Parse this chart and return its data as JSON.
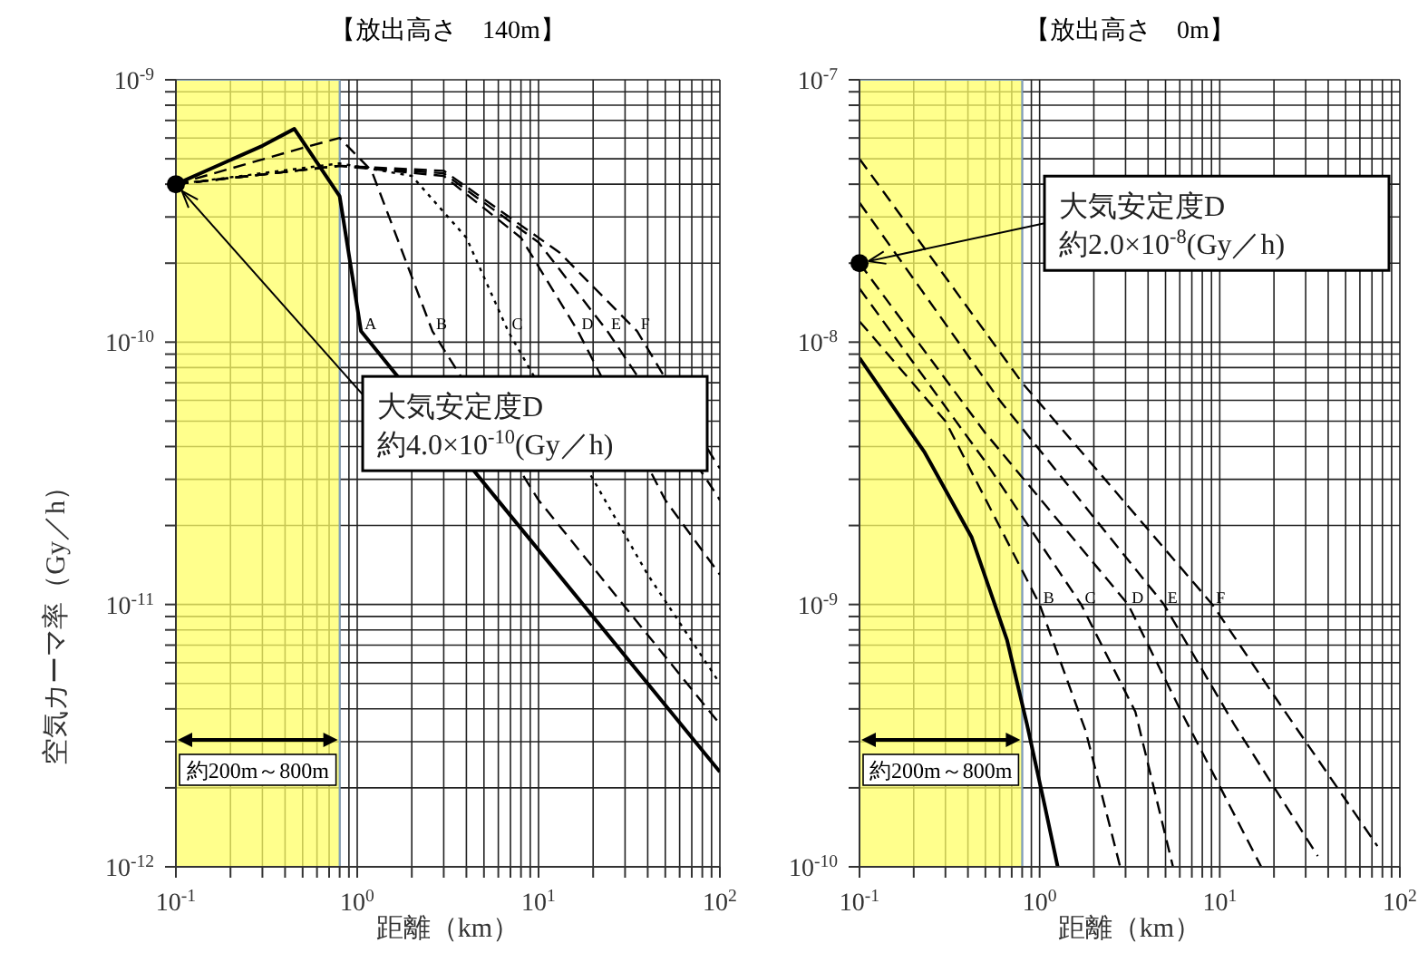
{
  "chart_data": [
    {
      "type": "line",
      "title": "【放出高さ　140m】",
      "xlabel": "距離（km）",
      "ylabel": "空気カーマ率（Gy／h）",
      "log": "xy",
      "grid": true,
      "legend": false,
      "marker": "none",
      "xlim": [
        0.1,
        100
      ],
      "ylim": [
        1e-12,
        1e-09
      ],
      "xticks": [
        {
          "value": 0.1,
          "label": "10$^{-1}$"
        },
        {
          "value": 0.2,
          "label": null
        },
        {
          "value": 0.3,
          "label": null
        },
        {
          "value": 0.4,
          "label": null
        },
        {
          "value": 0.5,
          "label": null
        },
        {
          "value": 0.6,
          "label": null
        },
        {
          "value": 0.7,
          "label": null
        },
        {
          "value": 0.8,
          "label": null
        },
        {
          "value": 0.9,
          "label": null
        },
        {
          "value": 1,
          "label": "10$^{0}$"
        },
        {
          "value": 2,
          "label": null
        },
        {
          "value": 3,
          "label": null
        },
        {
          "value": 4,
          "label": null
        },
        {
          "value": 5,
          "label": null
        },
        {
          "value": 6,
          "label": null
        },
        {
          "value": 7,
          "label": null
        },
        {
          "value": 8,
          "label": null
        },
        {
          "value": 9,
          "label": null
        },
        {
          "value": 10,
          "label": "10$^{1}$"
        },
        {
          "value": 20,
          "label": null
        },
        {
          "value": 30,
          "label": null
        },
        {
          "value": 40,
          "label": null
        },
        {
          "value": 50,
          "label": null
        },
        {
          "value": 60,
          "label": null
        },
        {
          "value": 70,
          "label": null
        },
        {
          "value": 80,
          "label": null
        },
        {
          "value": 90,
          "label": null
        },
        {
          "value": 100,
          "label": "10$^{2}$"
        }
      ],
      "yticks": [
        {
          "value": 1e-12,
          "label": "10$^{-12}$"
        },
        {
          "value": 2e-12,
          "label": null
        },
        {
          "value": 3e-12,
          "label": null
        },
        {
          "value": 4e-12,
          "label": null
        },
        {
          "value": 5e-12,
          "label": null
        },
        {
          "value": 6e-12,
          "label": null
        },
        {
          "value": 7e-12,
          "label": null
        },
        {
          "value": 8e-12,
          "label": null
        },
        {
          "value": 9e-12,
          "label": null
        },
        {
          "value": 1e-11,
          "label": "10$^{-11}$"
        },
        {
          "value": 2e-11,
          "label": null
        },
        {
          "value": 3e-11,
          "label": null
        },
        {
          "value": 4e-11,
          "label": null
        },
        {
          "value": 5e-11,
          "label": null
        },
        {
          "value": 6e-11,
          "label": null
        },
        {
          "value": 7e-11,
          "label": null
        },
        {
          "value": 8e-11,
          "label": null
        },
        {
          "value": 9e-11,
          "label": null
        },
        {
          "value": 1e-10,
          "label": "10$^{-10}$"
        },
        {
          "value": 2e-10,
          "label": null
        },
        {
          "value": 3e-10,
          "label": null
        },
        {
          "value": 4e-10,
          "label": null
        },
        {
          "value": 5e-10,
          "label": null
        },
        {
          "value": 6e-10,
          "label": null
        },
        {
          "value": 7e-10,
          "label": null
        },
        {
          "value": 8e-10,
          "label": null
        },
        {
          "value": 9e-10,
          "label": null
        },
        {
          "value": 1e-09,
          "label": "10$^{-9}$"
        }
      ],
      "series": [
        {
          "name": "A",
          "color": "#000000",
          "line_style": "solid",
          "x": [
            0.1,
            0.3,
            0.45,
            0.8,
            1.05,
            5,
            100
          ],
          "values": [
            4e-10,
            5.6e-10,
            6.5e-10,
            3.6e-10,
            1.1e-10,
            2.9e-11,
            2.3e-12
          ]
        },
        {
          "name": "B",
          "color": "#000000",
          "line_style": "dashed",
          "x": [
            0.1,
            0.5,
            0.8,
            1.2,
            2.6,
            10,
            100
          ],
          "values": [
            4e-10,
            5.5e-10,
            6e-10,
            4.5e-10,
            1.1e-10,
            2.5e-11,
            3.5e-12
          ]
        },
        {
          "name": "C",
          "color": "#000000",
          "line_style": "dotted",
          "x": [
            0.1,
            0.8,
            2,
            4,
            6.8,
            40,
            100
          ],
          "values": [
            4e-10,
            4.8e-10,
            4.3e-10,
            2.5e-10,
            1.1e-10,
            1.3e-11,
            5e-12
          ]
        },
        {
          "name": "D",
          "color": "#000000",
          "line_style": "dashed",
          "x": [
            0.1,
            0.8,
            3,
            8,
            16.5,
            50,
            100
          ],
          "values": [
            4e-10,
            4.7e-10,
            4.3e-10,
            2.5e-10,
            1.1e-10,
            2.5e-11,
            1.3e-11
          ]
        },
        {
          "name": "E",
          "color": "#000000",
          "line_style": "dashed",
          "x": [
            0.1,
            0.8,
            3,
            10,
            24,
            90,
            100
          ],
          "values": [
            4e-10,
            4.7e-10,
            4.4e-10,
            2.4e-10,
            1.1e-10,
            2.8e-11,
            2.5e-11
          ]
        },
        {
          "name": "F",
          "color": "#000000",
          "line_style": "dashed",
          "x": [
            0.1,
            0.8,
            3,
            13,
            35,
            90,
            100
          ],
          "values": [
            4e-10,
            4.7e-10,
            4.5e-10,
            2.2e-10,
            1.1e-10,
            3.7e-11,
            3.3e-11
          ]
        }
      ],
      "bands": [
        {
          "axis": "x",
          "from": 0.1,
          "to": 0.8,
          "label": "約200m～800m",
          "color": "#ffff66"
        }
      ],
      "annotations": [
        {
          "text": "大気安定度D\n約4.0×10$^{-10}$(Gy／h)",
          "x": 0.1,
          "y": 4e-10
        }
      ]
    },
    {
      "type": "line",
      "title": "【放出高さ　0m】",
      "xlabel": "距離（km）",
      "log": "xy",
      "grid": true,
      "legend": false,
      "marker": "none",
      "xlim": [
        0.1,
        100
      ],
      "ylim": [
        1e-10,
        1e-07
      ],
      "xticks": [
        {
          "value": 0.1,
          "label": "10$^{-1}$"
        },
        {
          "value": 0.2,
          "label": null
        },
        {
          "value": 0.3,
          "label": null
        },
        {
          "value": 0.4,
          "label": null
        },
        {
          "value": 0.5,
          "label": null
        },
        {
          "value": 0.6,
          "label": null
        },
        {
          "value": 0.7,
          "label": null
        },
        {
          "value": 0.8,
          "label": null
        },
        {
          "value": 0.9,
          "label": null
        },
        {
          "value": 1,
          "label": "10$^{0}$"
        },
        {
          "value": 2,
          "label": null
        },
        {
          "value": 3,
          "label": null
        },
        {
          "value": 4,
          "label": null
        },
        {
          "value": 5,
          "label": null
        },
        {
          "value": 6,
          "label": null
        },
        {
          "value": 7,
          "label": null
        },
        {
          "value": 8,
          "label": null
        },
        {
          "value": 9,
          "label": null
        },
        {
          "value": 10,
          "label": "10$^{1}$"
        },
        {
          "value": 20,
          "label": null
        },
        {
          "value": 30,
          "label": null
        },
        {
          "value": 40,
          "label": null
        },
        {
          "value": 50,
          "label": null
        },
        {
          "value": 60,
          "label": null
        },
        {
          "value": 70,
          "label": null
        },
        {
          "value": 80,
          "label": null
        },
        {
          "value": 90,
          "label": null
        },
        {
          "value": 100,
          "label": "10$^{2}$"
        }
      ],
      "yticks": [
        {
          "value": 1e-10,
          "label": "10$^{-10}$"
        },
        {
          "value": 2e-10,
          "label": null
        },
        {
          "value": 3e-10,
          "label": null
        },
        {
          "value": 4e-10,
          "label": null
        },
        {
          "value": 5e-10,
          "label": null
        },
        {
          "value": 6e-10,
          "label": null
        },
        {
          "value": 7e-10,
          "label": null
        },
        {
          "value": 8e-10,
          "label": null
        },
        {
          "value": 9e-10,
          "label": null
        },
        {
          "value": 1e-09,
          "label": "10$^{-9}$"
        },
        {
          "value": 2e-09,
          "label": null
        },
        {
          "value": 3e-09,
          "label": null
        },
        {
          "value": 4e-09,
          "label": null
        },
        {
          "value": 5e-09,
          "label": null
        },
        {
          "value": 6e-09,
          "label": null
        },
        {
          "value": 7e-09,
          "label": null
        },
        {
          "value": 8e-09,
          "label": null
        },
        {
          "value": 9e-09,
          "label": null
        },
        {
          "value": 1e-08,
          "label": "10$^{-8}$"
        },
        {
          "value": 2e-08,
          "label": null
        },
        {
          "value": 3e-08,
          "label": null
        },
        {
          "value": 4e-08,
          "label": null
        },
        {
          "value": 5e-08,
          "label": null
        },
        {
          "value": 6e-08,
          "label": null
        },
        {
          "value": 7e-08,
          "label": null
        },
        {
          "value": 8e-08,
          "label": null
        },
        {
          "value": 9e-08,
          "label": null
        },
        {
          "value": 1e-07,
          "label": "10$^{-7}$"
        }
      ],
      "series": [
        {
          "color": "#000000",
          "line_style": "solid",
          "x": [
            0.1,
            0.23,
            0.42,
            0.66,
            0.85,
            1.07,
            1.26
          ],
          "values": [
            8.7e-09,
            3.8e-09,
            1.8e-09,
            7.3e-10,
            3.5e-10,
            1.7e-10,
            1e-10
          ]
        },
        {
          "name": "B",
          "color": "#000000",
          "line_style": "dashed",
          "x": [
            0.1,
            0.3,
            1,
            1.8,
            2.8
          ],
          "values": [
            1.2e-08,
            5e-09,
            1e-09,
            3.3e-10,
            1e-10
          ]
        },
        {
          "name": "C",
          "color": "#000000",
          "line_style": "dashed",
          "x": [
            0.1,
            0.5,
            1.7,
            3.4,
            5.5
          ],
          "values": [
            1.6e-08,
            3.5e-09,
            1e-09,
            3.9e-10,
            1e-10
          ]
        },
        {
          "name": "D",
          "color": "#000000",
          "line_style": "dashed",
          "x": [
            0.1,
            0.5,
            3.1,
            6,
            17
          ],
          "values": [
            2e-08,
            4.5e-09,
            1e-09,
            4e-10,
            1e-10
          ]
        },
        {
          "name": "E",
          "color": "#000000",
          "line_style": "dashed",
          "x": [
            0.1,
            0.6,
            4.9,
            12,
            35
          ],
          "values": [
            3.4e-08,
            6e-09,
            1e-09,
            3.5e-10,
            1.1e-10
          ]
        },
        {
          "name": "F",
          "color": "#000000",
          "line_style": "dashed",
          "x": [
            0.1,
            0.8,
            9.1,
            20,
            75
          ],
          "values": [
            5e-08,
            7e-09,
            1e-09,
            4.5e-10,
            1.2e-10
          ]
        }
      ],
      "bands": [
        {
          "axis": "x",
          "from": 0.1,
          "to": 0.8,
          "label": "約200m～800m",
          "color": "#ffff66"
        }
      ],
      "annotations": [
        {
          "text": "大気安定度D\n約2.0×10$^{-8}$(Gy／h)",
          "x": 0.1,
          "y": 2e-08
        }
      ]
    }
  ]
}
